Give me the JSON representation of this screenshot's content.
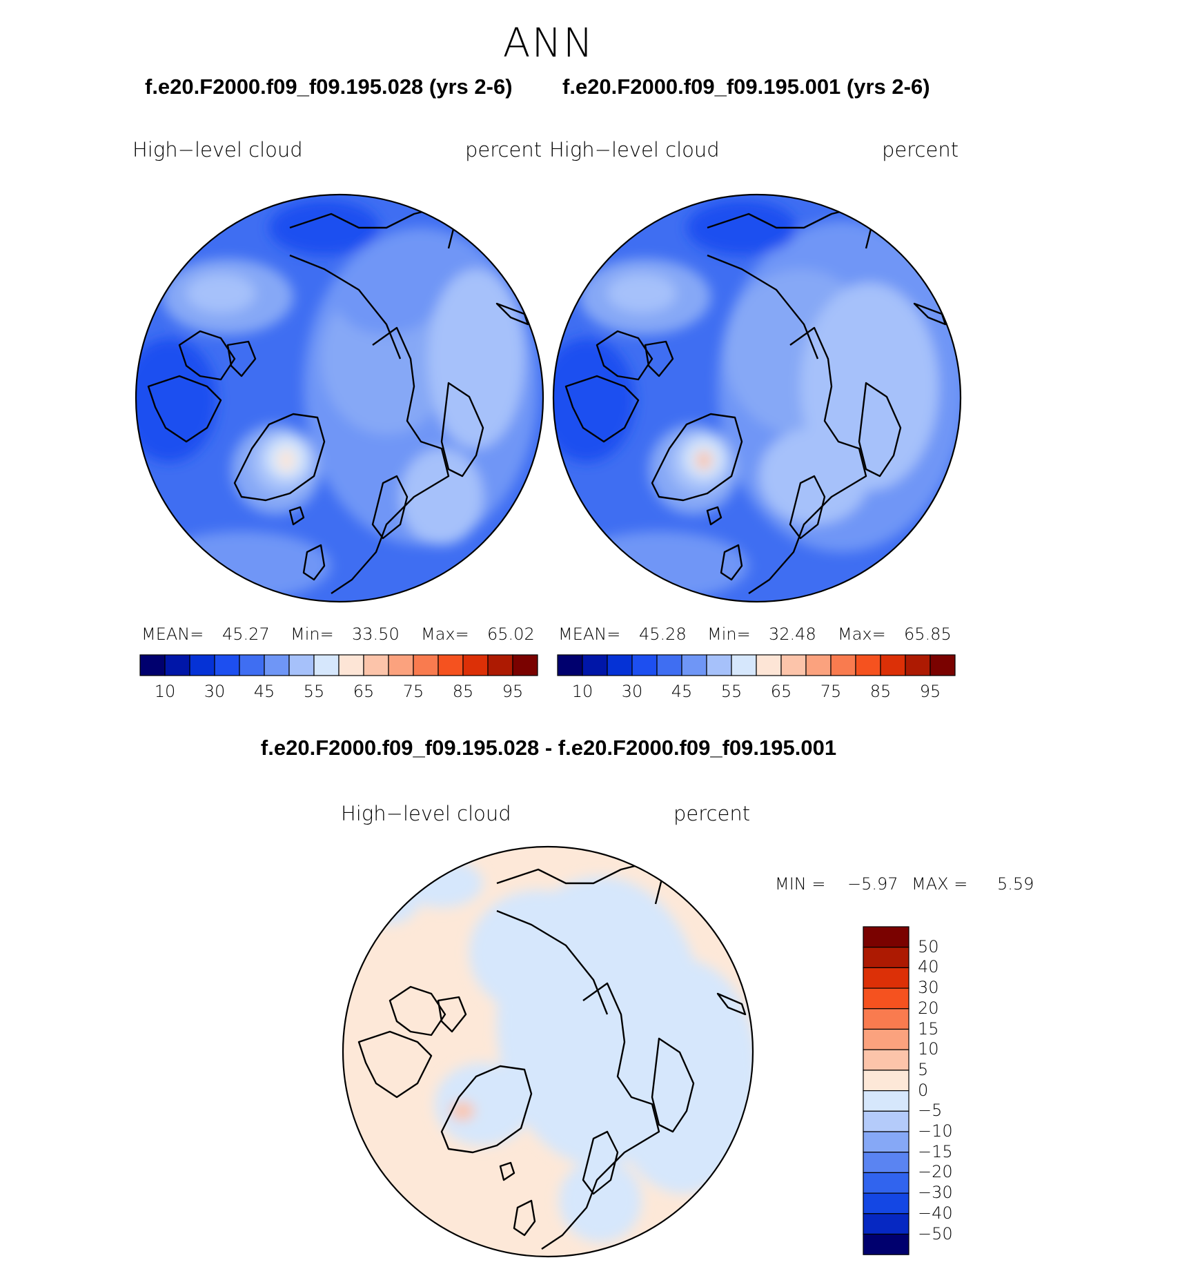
{
  "page_title": "ANN",
  "panels": [
    {
      "case_title": "f.e20.F2000.f09_f09.195.028 (yrs 2-6)",
      "field_label": "High−level cloud",
      "units_label": "percent",
      "mean_label": "MEAN=",
      "mean_value": "45.27",
      "min_label": "Min=",
      "min_value": "33.50",
      "max_label": "Max=",
      "max_value": "65.02"
    },
    {
      "case_title": "f.e20.F2000.f09_f09.195.001 (yrs 2-6)",
      "field_label": "High−level cloud",
      "units_label": "percent",
      "mean_label": "MEAN=",
      "mean_value": "45.28",
      "min_label": "Min=",
      "min_value": "32.48",
      "max_label": "Max=",
      "max_value": "65.85"
    }
  ],
  "colorbar": {
    "colors": [
      "#00006e",
      "#0016a8",
      "#0532d6",
      "#1d4ff0",
      "#3f6ef2",
      "#6f96f6",
      "#a6c1fa",
      "#d6e7fc",
      "#fde5d6",
      "#fcc4aa",
      "#fba27e",
      "#f97b4f",
      "#f5521f",
      "#dc3007",
      "#ad1a02",
      "#7a0200"
    ],
    "tick_labels": [
      "10",
      "30",
      "45",
      "55",
      "65",
      "75",
      "85",
      "95"
    ]
  },
  "difference": {
    "title": "f.e20.F2000.f09_f09.195.028 - f.e20.F2000.f09_f09.195.001",
    "field_label": "High−level cloud",
    "units_label": "percent",
    "min_label": "MIN =",
    "min_value": "−5.97",
    "max_label": "MAX =",
    "max_value": "5.59",
    "colorbar_colors": [
      "#7a0200",
      "#ad1a02",
      "#dc3007",
      "#f5521f",
      "#f97b4f",
      "#fba27e",
      "#fcc4aa",
      "#fde8d8",
      "#d6e7fc",
      "#b4cbfa",
      "#86a8f6",
      "#5a84f2",
      "#3164ee",
      "#1447e4",
      "#0628c2",
      "#00006e"
    ],
    "tick_labels": [
      "50",
      "40",
      "30",
      "20",
      "15",
      "10",
      "5",
      "0",
      "−5",
      "−10",
      "−15",
      "−20",
      "−30",
      "−40",
      "−50"
    ]
  }
}
